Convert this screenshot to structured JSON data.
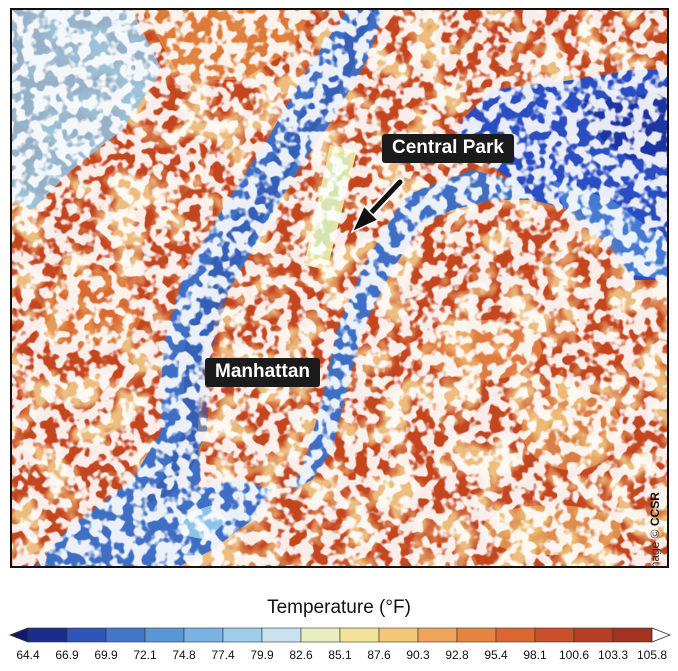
{
  "map": {
    "labels": {
      "central_park": "Central Park",
      "manhattan": "Manhattan"
    },
    "credit": {
      "prefix": "Image © ",
      "brand": "CCSR"
    }
  },
  "legend": {
    "title": "Temperature (°F)",
    "ticks": [
      "64.4",
      "66.9",
      "69.9",
      "72.1",
      "74.8",
      "77.4",
      "79.9",
      "82.6",
      "85.1",
      "87.6",
      "90.3",
      "92.8",
      "95.4",
      "98.1",
      "100.6",
      "103.3",
      "105.8"
    ],
    "colors": [
      "#1a2d8f",
      "#2f55b8",
      "#4377c9",
      "#5a95d6",
      "#7ab3e3",
      "#a0cdec",
      "#c8e3ef",
      "#e8eec2",
      "#f3e39a",
      "#f2c874",
      "#eea45a",
      "#e5833f",
      "#d9672f",
      "#c8502a",
      "#b63e24",
      "#a23320"
    ],
    "low_end_color": "#101b6e",
    "high_end_color": "#ffffff"
  }
}
